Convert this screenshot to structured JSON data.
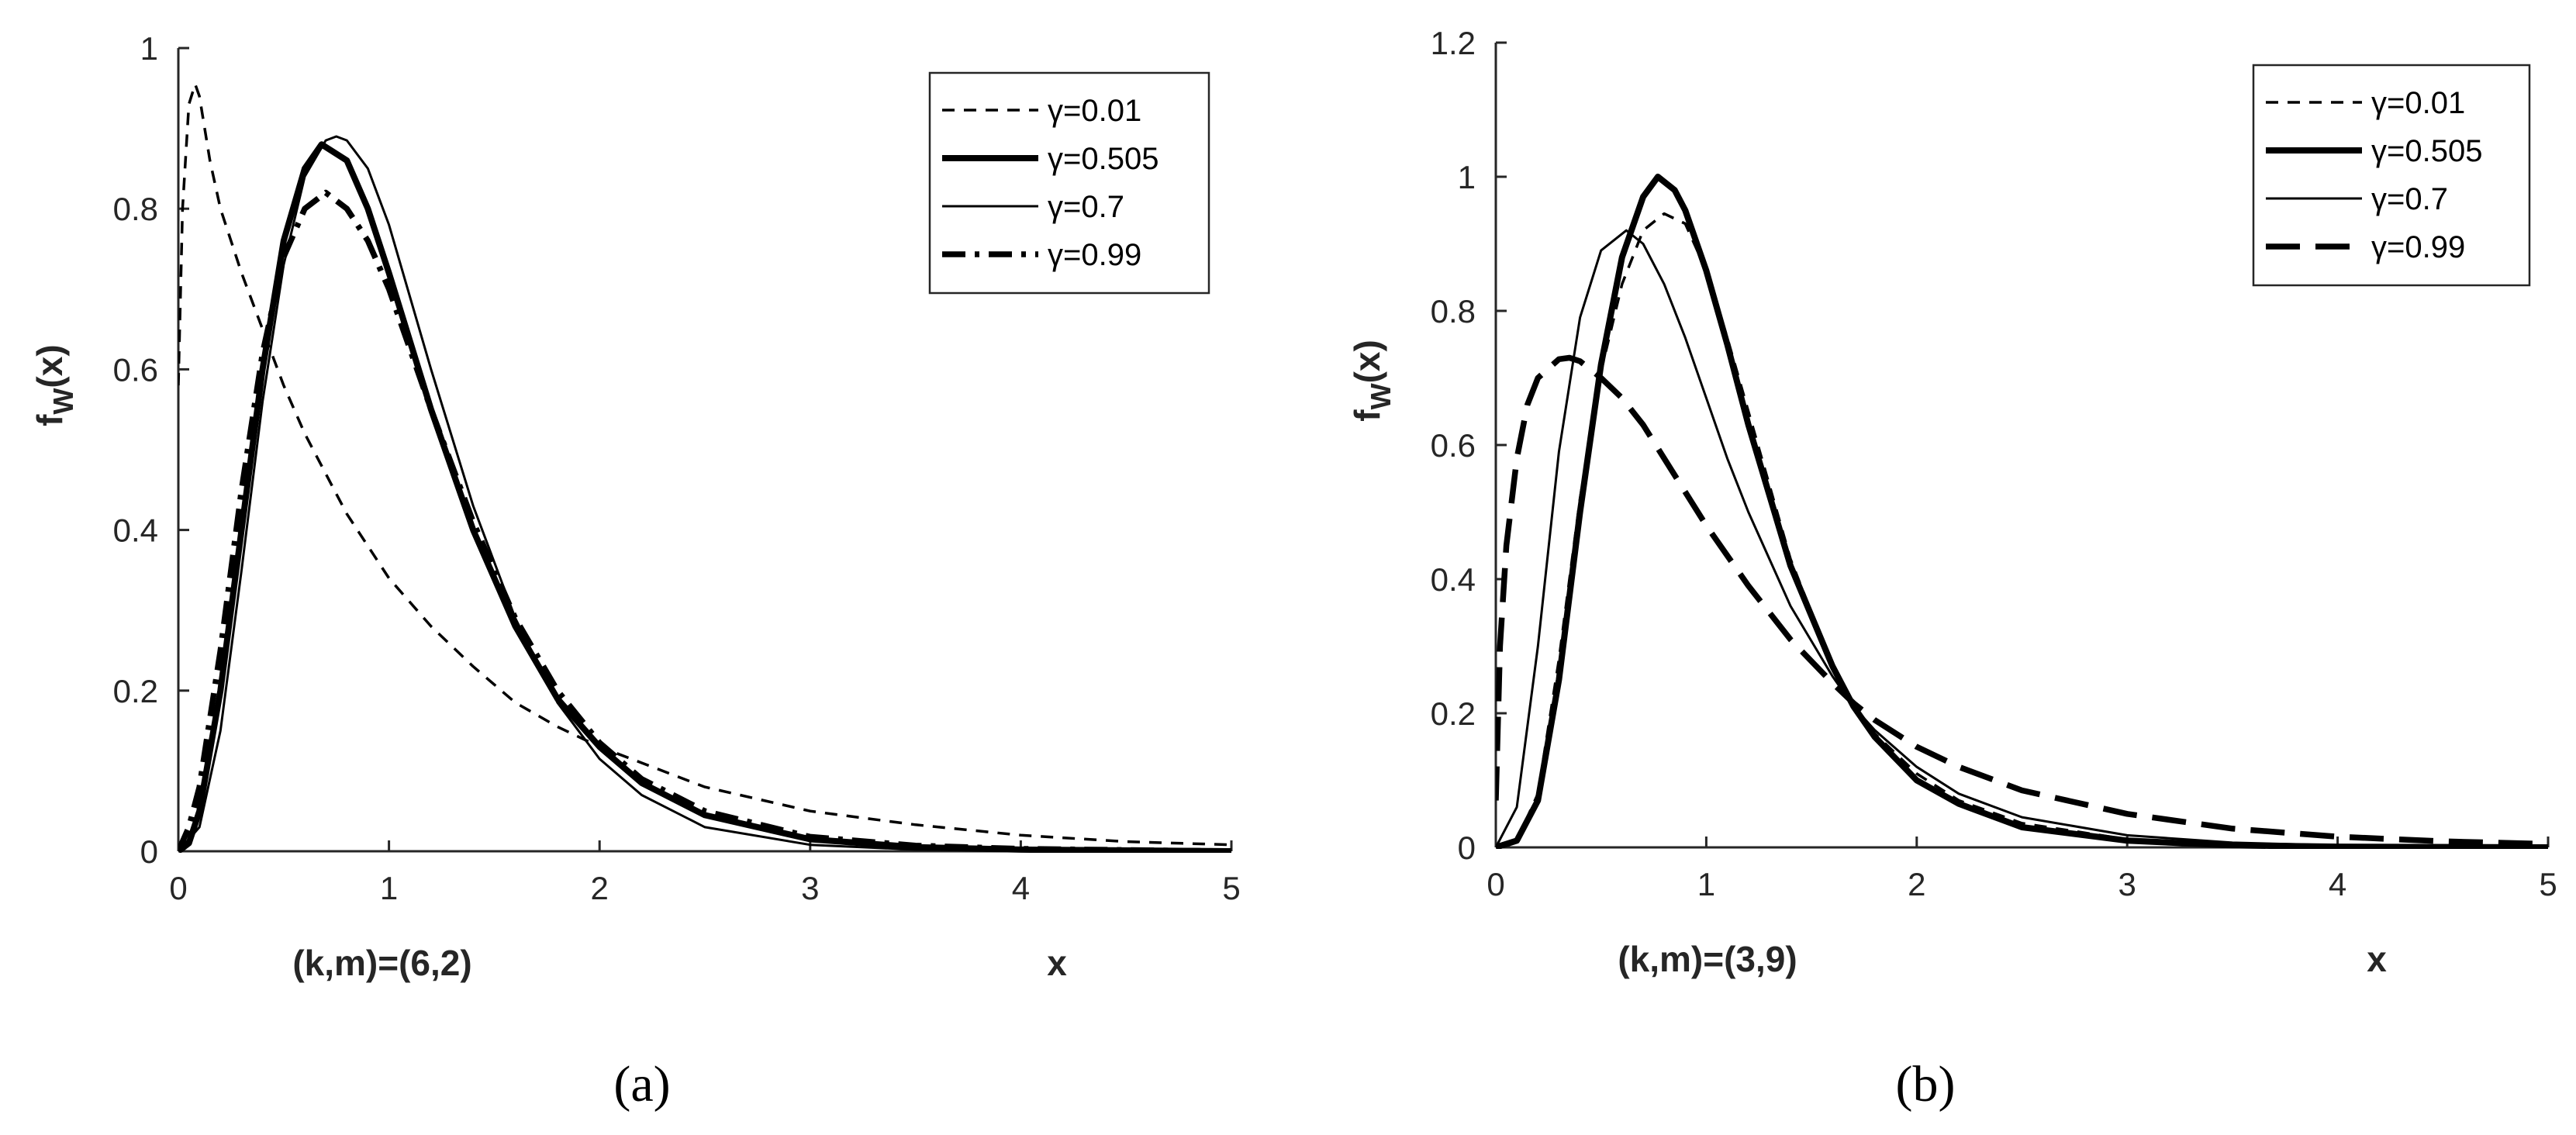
{
  "chart_data": [
    {
      "type": "line",
      "panel_label": "(a)",
      "annotation": "(k,m)=(6,2)",
      "xlabel": "x",
      "ylabel_main": "f",
      "ylabel_sub": "W",
      "ylabel_tail": "(x)",
      "xlim": [
        0,
        5
      ],
      "ylim": [
        0,
        1
      ],
      "xticks": [
        0,
        1,
        2,
        3,
        4,
        5
      ],
      "yticks": [
        0,
        0.2,
        0.4,
        0.6,
        0.8,
        1
      ],
      "ytick_labels": [
        "0",
        "0.2",
        "0.4",
        "0.6",
        "0.8",
        "1"
      ],
      "grid": false,
      "legend_position": "top-right",
      "series": [
        {
          "name": "γ=0.01",
          "style": "dashed-thin",
          "x": [
            0,
            0.02,
            0.05,
            0.08,
            0.1,
            0.15,
            0.2,
            0.3,
            0.4,
            0.5,
            0.6,
            0.7,
            0.8,
            1.0,
            1.2,
            1.4,
            1.6,
            1.8,
            2.0,
            2.2,
            2.5,
            3.0,
            3.5,
            4.0,
            4.5,
            5.0
          ],
          "y": [
            0.58,
            0.8,
            0.93,
            0.955,
            0.94,
            0.86,
            0.8,
            0.72,
            0.65,
            0.58,
            0.52,
            0.47,
            0.42,
            0.34,
            0.28,
            0.23,
            0.185,
            0.155,
            0.13,
            0.11,
            0.08,
            0.05,
            0.033,
            0.02,
            0.012,
            0.008
          ]
        },
        {
          "name": "γ=0.505",
          "style": "solid-thick",
          "x": [
            0,
            0.05,
            0.1,
            0.2,
            0.3,
            0.4,
            0.5,
            0.6,
            0.68,
            0.8,
            0.9,
            1.0,
            1.2,
            1.4,
            1.6,
            1.8,
            2.0,
            2.2,
            2.5,
            3.0,
            3.5,
            4.0,
            5.0
          ],
          "y": [
            0,
            0.01,
            0.05,
            0.2,
            0.4,
            0.6,
            0.76,
            0.85,
            0.88,
            0.86,
            0.8,
            0.72,
            0.55,
            0.4,
            0.28,
            0.19,
            0.13,
            0.085,
            0.045,
            0.015,
            0.005,
            0.002,
            0
          ]
        },
        {
          "name": "γ=0.7",
          "style": "solid-thin",
          "x": [
            0,
            0.1,
            0.2,
            0.3,
            0.4,
            0.5,
            0.6,
            0.7,
            0.75,
            0.8,
            0.9,
            1.0,
            1.2,
            1.4,
            1.6,
            1.8,
            2.0,
            2.2,
            2.5,
            3.0,
            3.5,
            4.0,
            5.0
          ],
          "y": [
            0,
            0.03,
            0.15,
            0.35,
            0.56,
            0.73,
            0.84,
            0.885,
            0.89,
            0.885,
            0.85,
            0.78,
            0.6,
            0.43,
            0.29,
            0.185,
            0.115,
            0.07,
            0.03,
            0.008,
            0.002,
            0.001,
            0
          ]
        },
        {
          "name": "γ=0.99",
          "style": "dashdot-thick",
          "x": [
            0,
            0.05,
            0.1,
            0.2,
            0.3,
            0.4,
            0.5,
            0.6,
            0.7,
            0.8,
            0.9,
            1.0,
            1.2,
            1.4,
            1.6,
            1.8,
            2.0,
            2.2,
            2.5,
            3.0,
            3.5,
            4.0,
            5.0
          ],
          "y": [
            0,
            0.03,
            0.08,
            0.25,
            0.45,
            0.62,
            0.74,
            0.8,
            0.82,
            0.8,
            0.76,
            0.7,
            0.55,
            0.41,
            0.29,
            0.2,
            0.135,
            0.09,
            0.05,
            0.018,
            0.007,
            0.003,
            0
          ]
        }
      ]
    },
    {
      "type": "line",
      "panel_label": "(b)",
      "annotation": "(k,m)=(3,9)",
      "xlabel": "x",
      "ylabel_main": "f",
      "ylabel_sub": "W",
      "ylabel_tail": "(x)",
      "xlim": [
        0,
        5
      ],
      "ylim": [
        0,
        1.2
      ],
      "xticks": [
        0,
        1,
        2,
        3,
        4,
        5
      ],
      "yticks": [
        0,
        0.2,
        0.4,
        0.6,
        0.8,
        1,
        1.2
      ],
      "ytick_labels": [
        "0",
        "0.2",
        "0.4",
        "0.6",
        "0.8",
        "1",
        "1.2"
      ],
      "grid": false,
      "legend_position": "top-right",
      "series": [
        {
          "name": "γ=0.01",
          "style": "dashed-thin",
          "x": [
            0,
            0.1,
            0.2,
            0.3,
            0.4,
            0.5,
            0.6,
            0.7,
            0.8,
            0.9,
            1.0,
            1.1,
            1.2,
            1.4,
            1.6,
            1.7,
            1.8,
            2.0,
            2.2,
            2.5,
            3.0,
            3.5,
            4.0,
            5.0
          ],
          "y": [
            0,
            0.01,
            0.08,
            0.28,
            0.52,
            0.71,
            0.84,
            0.92,
            0.945,
            0.93,
            0.86,
            0.76,
            0.65,
            0.43,
            0.27,
            0.21,
            0.17,
            0.11,
            0.07,
            0.036,
            0.012,
            0.004,
            0.002,
            0
          ]
        },
        {
          "name": "γ=0.505",
          "style": "solid-thick",
          "x": [
            0,
            0.1,
            0.2,
            0.3,
            0.4,
            0.5,
            0.6,
            0.7,
            0.77,
            0.85,
            0.9,
            1.0,
            1.1,
            1.2,
            1.4,
            1.6,
            1.7,
            1.8,
            2.0,
            2.2,
            2.5,
            3.0,
            3.5,
            4.0,
            5.0
          ],
          "y": [
            0,
            0.01,
            0.07,
            0.25,
            0.5,
            0.72,
            0.88,
            0.97,
            1.0,
            0.98,
            0.95,
            0.86,
            0.75,
            0.63,
            0.42,
            0.27,
            0.21,
            0.165,
            0.1,
            0.065,
            0.03,
            0.01,
            0.003,
            0.001,
            0
          ]
        },
        {
          "name": "γ=0.7",
          "style": "solid-thin",
          "x": [
            0,
            0.1,
            0.2,
            0.3,
            0.4,
            0.5,
            0.62,
            0.7,
            0.8,
            0.9,
            1.0,
            1.1,
            1.2,
            1.4,
            1.6,
            1.7,
            1.8,
            2.0,
            2.2,
            2.5,
            3.0,
            3.5,
            4.0,
            5.0
          ],
          "y": [
            0,
            0.06,
            0.3,
            0.59,
            0.79,
            0.89,
            0.92,
            0.9,
            0.84,
            0.76,
            0.67,
            0.58,
            0.5,
            0.36,
            0.255,
            0.21,
            0.175,
            0.12,
            0.08,
            0.045,
            0.018,
            0.007,
            0.003,
            0
          ]
        },
        {
          "name": "γ=0.99",
          "style": "longdash-thick",
          "x": [
            0,
            0.02,
            0.05,
            0.1,
            0.15,
            0.2,
            0.3,
            0.35,
            0.4,
            0.5,
            0.6,
            0.7,
            0.8,
            1.0,
            1.2,
            1.4,
            1.6,
            1.7,
            1.8,
            2.0,
            2.2,
            2.5,
            3.0,
            3.5,
            4.0,
            4.5,
            5.0
          ],
          "y": [
            0.07,
            0.3,
            0.45,
            0.58,
            0.66,
            0.7,
            0.728,
            0.73,
            0.725,
            0.7,
            0.67,
            0.63,
            0.58,
            0.48,
            0.39,
            0.31,
            0.245,
            0.215,
            0.19,
            0.15,
            0.12,
            0.085,
            0.05,
            0.028,
            0.016,
            0.009,
            0.005
          ]
        }
      ]
    }
  ]
}
